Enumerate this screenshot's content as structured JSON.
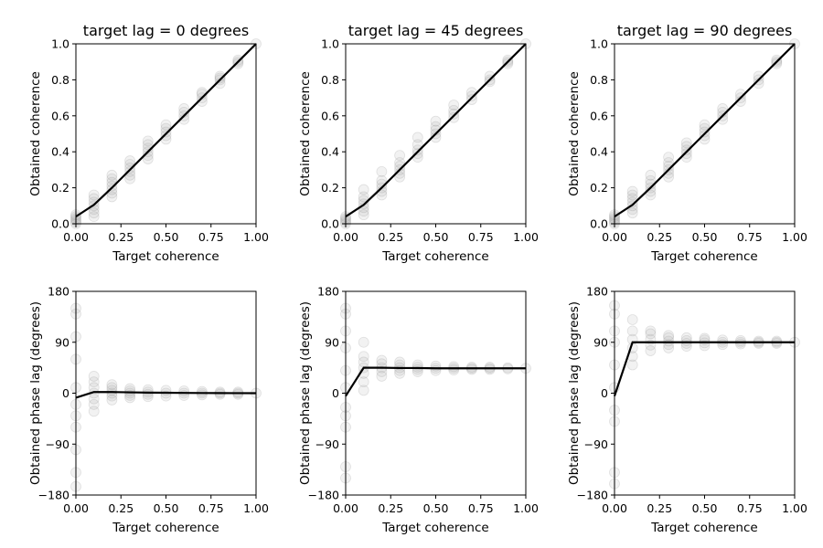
{
  "chart_data": [
    {
      "type": "scatter",
      "title": "target lag = 0 degrees",
      "xlabel": "Target coherence",
      "ylabel": "Obtained coherence",
      "xlim": [
        0,
        1
      ],
      "ylim": [
        0,
        1
      ],
      "xticks": [
        "0.00",
        "0.25",
        "0.50",
        "0.75",
        "1.00"
      ],
      "yticks": [
        "0.0",
        "0.2",
        "0.4",
        "0.6",
        "0.8",
        "1.0"
      ],
      "grid": false,
      "x": [
        0,
        0.1,
        0.2,
        0.3,
        0.4,
        0.5,
        0.6,
        0.7,
        0.8,
        0.9,
        1.0
      ],
      "scatter": [
        [
          0.0,
          0.01,
          0.02,
          0.03,
          0.04,
          0.05
        ],
        [
          0.04,
          0.06,
          0.08,
          0.1,
          0.12,
          0.14,
          0.16
        ],
        [
          0.15,
          0.17,
          0.19,
          0.21,
          0.23,
          0.25,
          0.27
        ],
        [
          0.25,
          0.27,
          0.29,
          0.31,
          0.33,
          0.35
        ],
        [
          0.36,
          0.38,
          0.4,
          0.42,
          0.44,
          0.46
        ],
        [
          0.47,
          0.49,
          0.51,
          0.53,
          0.55
        ],
        [
          0.58,
          0.6,
          0.62,
          0.64
        ],
        [
          0.68,
          0.7,
          0.72,
          0.73
        ],
        [
          0.78,
          0.8,
          0.81,
          0.82
        ],
        [
          0.89,
          0.9,
          0.91
        ],
        [
          1.0
        ]
      ],
      "line": [
        0.04,
        0.105,
        0.2,
        0.3,
        0.4,
        0.5,
        0.6,
        0.7,
        0.8,
        0.9,
        1.0
      ]
    },
    {
      "type": "scatter",
      "title": "target lag = 45 degrees",
      "xlabel": "Target coherence",
      "ylabel": "Obtained coherence",
      "xlim": [
        0,
        1
      ],
      "ylim": [
        0,
        1
      ],
      "xticks": [
        "0.00",
        "0.25",
        "0.50",
        "0.75",
        "1.00"
      ],
      "yticks": [
        "0.0",
        "0.2",
        "0.4",
        "0.6",
        "0.8",
        "1.0"
      ],
      "grid": false,
      "x": [
        0,
        0.1,
        0.2,
        0.3,
        0.4,
        0.5,
        0.6,
        0.7,
        0.8,
        0.9,
        1.0
      ],
      "scatter": [
        [
          0.0,
          0.01,
          0.02,
          0.03,
          0.04
        ],
        [
          0.05,
          0.07,
          0.09,
          0.11,
          0.13,
          0.15,
          0.19
        ],
        [
          0.16,
          0.18,
          0.2,
          0.22,
          0.24,
          0.29
        ],
        [
          0.26,
          0.28,
          0.3,
          0.32,
          0.34,
          0.38
        ],
        [
          0.37,
          0.39,
          0.41,
          0.44,
          0.48
        ],
        [
          0.48,
          0.5,
          0.52,
          0.54,
          0.57
        ],
        [
          0.59,
          0.61,
          0.63,
          0.66
        ],
        [
          0.69,
          0.71,
          0.73
        ],
        [
          0.79,
          0.8,
          0.82
        ],
        [
          0.89,
          0.9,
          0.91
        ],
        [
          1.0
        ]
      ],
      "line": [
        0.04,
        0.105,
        0.2,
        0.3,
        0.4,
        0.5,
        0.6,
        0.7,
        0.8,
        0.9,
        1.0
      ]
    },
    {
      "type": "scatter",
      "title": "target lag = 90 degrees",
      "xlabel": "Target coherence",
      "ylabel": "Obtained coherence",
      "xlim": [
        0,
        1
      ],
      "ylim": [
        0,
        1
      ],
      "xticks": [
        "0.00",
        "0.25",
        "0.50",
        "0.75",
        "1.00"
      ],
      "yticks": [
        "0.0",
        "0.2",
        "0.4",
        "0.6",
        "0.8",
        "1.0"
      ],
      "grid": false,
      "x": [
        0,
        0.1,
        0.2,
        0.3,
        0.4,
        0.5,
        0.6,
        0.7,
        0.8,
        0.9,
        1.0
      ],
      "scatter": [
        [
          0.0,
          0.01,
          0.02,
          0.03,
          0.04,
          0.05
        ],
        [
          0.06,
          0.08,
          0.1,
          0.12,
          0.14,
          0.16,
          0.18
        ],
        [
          0.16,
          0.18,
          0.2,
          0.22,
          0.24,
          0.27
        ],
        [
          0.26,
          0.28,
          0.3,
          0.32,
          0.34,
          0.37
        ],
        [
          0.37,
          0.39,
          0.41,
          0.43,
          0.45
        ],
        [
          0.47,
          0.49,
          0.51,
          0.53,
          0.55
        ],
        [
          0.58,
          0.6,
          0.62,
          0.64
        ],
        [
          0.68,
          0.7,
          0.72
        ],
        [
          0.78,
          0.8,
          0.82
        ],
        [
          0.89,
          0.9,
          0.91
        ],
        [
          1.0
        ]
      ],
      "line": [
        0.04,
        0.105,
        0.2,
        0.3,
        0.4,
        0.5,
        0.6,
        0.7,
        0.8,
        0.9,
        1.0
      ]
    },
    {
      "type": "scatter",
      "title": "",
      "xlabel": "Target coherence",
      "ylabel": "Obtained phase lag (degrees)",
      "xlim": [
        0,
        1
      ],
      "ylim": [
        -180,
        180
      ],
      "xticks": [
        "0.00",
        "0.25",
        "0.50",
        "0.75",
        "1.00"
      ],
      "yticks": [
        "−180",
        "−90",
        "0",
        "90",
        "180"
      ],
      "ytick_values": [
        -180,
        -90,
        0,
        90,
        180
      ],
      "grid": false,
      "x": [
        0,
        0.1,
        0.2,
        0.3,
        0.4,
        0.5,
        0.6,
        0.7,
        0.8,
        0.9,
        1.0
      ],
      "scatter": [
        [
          -165,
          -140,
          -100,
          -60,
          -40,
          -20,
          10,
          60,
          100,
          140,
          150
        ],
        [
          -32,
          -20,
          -10,
          0,
          10,
          20,
          30
        ],
        [
          -12,
          -5,
          0,
          5,
          10,
          15
        ],
        [
          -8,
          -4,
          0,
          4,
          8
        ],
        [
          -6,
          -2,
          2,
          6
        ],
        [
          -5,
          0,
          5
        ],
        [
          -4,
          0,
          4
        ],
        [
          -3,
          0,
          3
        ],
        [
          -2,
          0,
          2
        ],
        [
          -2,
          0,
          2
        ],
        [
          0
        ]
      ],
      "line": [
        -8,
        2,
        2,
        1.5,
        1,
        0.8,
        0.5,
        0.3,
        0.2,
        0.1,
        0
      ]
    },
    {
      "type": "scatter",
      "title": "",
      "xlabel": "Target coherence",
      "ylabel": "Obtained phase lag (degrees)",
      "xlim": [
        0,
        1
      ],
      "ylim": [
        -180,
        180
      ],
      "xticks": [
        "0.00",
        "0.25",
        "0.50",
        "0.75",
        "1.00"
      ],
      "yticks": [
        "−180",
        "−90",
        "0",
        "90",
        "180"
      ],
      "ytick_values": [
        -180,
        -90,
        0,
        90,
        180
      ],
      "grid": false,
      "x": [
        0,
        0.1,
        0.2,
        0.3,
        0.4,
        0.5,
        0.6,
        0.7,
        0.8,
        0.9,
        1.0
      ],
      "scatter": [
        [
          -150,
          -130,
          -60,
          -40,
          -25,
          10,
          40,
          80,
          110,
          140,
          150
        ],
        [
          5,
          20,
          35,
          45,
          55,
          65,
          90
        ],
        [
          30,
          38,
          45,
          52,
          58
        ],
        [
          35,
          40,
          45,
          50,
          55
        ],
        [
          38,
          42,
          46,
          50
        ],
        [
          40,
          44,
          48
        ],
        [
          41,
          44,
          47
        ],
        [
          42,
          44,
          46
        ],
        [
          42,
          44,
          46
        ],
        [
          43,
          45
        ],
        [
          44
        ]
      ],
      "line": [
        -5,
        45,
        45,
        44.5,
        44.5,
        44,
        44,
        44,
        44,
        44,
        44
      ]
    },
    {
      "type": "scatter",
      "title": "",
      "xlabel": "Target coherence",
      "ylabel": "Obtained phase lag (degrees)",
      "xlim": [
        0,
        1
      ],
      "ylim": [
        -180,
        180
      ],
      "xticks": [
        "0.00",
        "0.25",
        "0.50",
        "0.75",
        "1.00"
      ],
      "yticks": [
        "−180",
        "−90",
        "0",
        "90",
        "180"
      ],
      "ytick_values": [
        -180,
        -90,
        0,
        90,
        180
      ],
      "grid": false,
      "x": [
        0,
        0.1,
        0.2,
        0.3,
        0.4,
        0.5,
        0.6,
        0.7,
        0.8,
        0.9,
        1.0
      ],
      "scatter": [
        [
          -160,
          -140,
          -50,
          -30,
          10,
          50,
          90,
          110,
          140,
          155
        ],
        [
          50,
          65,
          80,
          95,
          110,
          130
        ],
        [
          75,
          85,
          95,
          105,
          110
        ],
        [
          80,
          86,
          92,
          98,
          102
        ],
        [
          83,
          88,
          93,
          98
        ],
        [
          84,
          89,
          94,
          97
        ],
        [
          86,
          90,
          94
        ],
        [
          87,
          90,
          93
        ],
        [
          88,
          90,
          92
        ],
        [
          88,
          90,
          92
        ],
        [
          90
        ]
      ],
      "line": [
        -5,
        90,
        90,
        90,
        90,
        90,
        90,
        90,
        90,
        90,
        90
      ]
    }
  ]
}
